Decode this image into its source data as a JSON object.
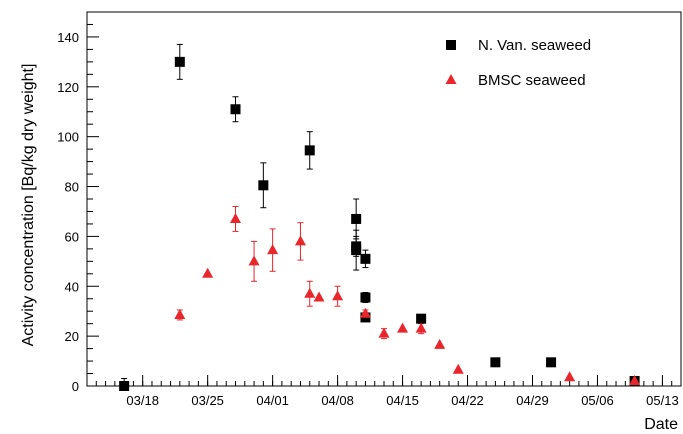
{
  "chart_data": {
    "type": "scatter",
    "xlabel": "Date",
    "ylabel": "Activity concentration [Bq/kg dry weight]",
    "x_axis_type": "date",
    "xlim": [
      "2011-03-12",
      "2011-05-15"
    ],
    "ylim": [
      0,
      150
    ],
    "x_ticks": [
      "03/18",
      "03/25",
      "04/01",
      "04/08",
      "04/15",
      "04/22",
      "04/29",
      "05/06",
      "05/13"
    ],
    "x_tick_dates": [
      "2011-03-18",
      "2011-03-25",
      "2011-04-01",
      "2011-04-08",
      "2011-04-15",
      "2011-04-22",
      "2011-04-29",
      "2011-05-06",
      "2011-05-13"
    ],
    "y_ticks": [
      0,
      20,
      40,
      60,
      80,
      100,
      120,
      140
    ],
    "grid": false,
    "legend_position": "top-right",
    "series": [
      {
        "name": "N. Van. seaweed",
        "marker": "square",
        "color": "#000000",
        "points": [
          {
            "x": "2011-03-16",
            "y": 0,
            "err": 3
          },
          {
            "x": "2011-03-22",
            "y": 130,
            "err": 7
          },
          {
            "x": "2011-03-28",
            "y": 111,
            "err": 5
          },
          {
            "x": "2011-03-31",
            "y": 80.5,
            "err": 9
          },
          {
            "x": "2011-04-05",
            "y": 94.5,
            "err": 7.5
          },
          {
            "x": "2011-04-10",
            "y": 67,
            "err": 8
          },
          {
            "x": "2011-04-10",
            "y": 56,
            "err": 4
          },
          {
            "x": "2011-04-10",
            "y": 54.5,
            "err": 8
          },
          {
            "x": "2011-04-11",
            "y": 51,
            "err": 3.5
          },
          {
            "x": "2011-04-11",
            "y": 35.5,
            "err": 2
          },
          {
            "x": "2011-04-11",
            "y": 27.5,
            "err": 1.5
          },
          {
            "x": "2011-04-17",
            "y": 27,
            "err": 1.5
          },
          {
            "x": "2011-04-25",
            "y": 9.5,
            "err": 1
          },
          {
            "x": "2011-05-01",
            "y": 9.5,
            "err": 1
          },
          {
            "x": "2011-05-10",
            "y": 2,
            "err": 0.5
          }
        ]
      },
      {
        "name": "BMSC seaweed",
        "marker": "triangle",
        "color": "#e8262b",
        "points": [
          {
            "x": "2011-03-22",
            "y": 28.5,
            "err": 2
          },
          {
            "x": "2011-03-25",
            "y": 45,
            "err": 0
          },
          {
            "x": "2011-03-28",
            "y": 67,
            "err": 5
          },
          {
            "x": "2011-03-30",
            "y": 50,
            "err": 8
          },
          {
            "x": "2011-04-01",
            "y": 54.5,
            "err": 8.5
          },
          {
            "x": "2011-04-04",
            "y": 58,
            "err": 7.5
          },
          {
            "x": "2011-04-05",
            "y": 37,
            "err": 5
          },
          {
            "x": "2011-04-06",
            "y": 35.5,
            "err": 0
          },
          {
            "x": "2011-04-08",
            "y": 36,
            "err": 4
          },
          {
            "x": "2011-04-11",
            "y": 29,
            "err": 1.5
          },
          {
            "x": "2011-04-13",
            "y": 21,
            "err": 2
          },
          {
            "x": "2011-04-15",
            "y": 23,
            "err": 0
          },
          {
            "x": "2011-04-17",
            "y": 23,
            "err": 2
          },
          {
            "x": "2011-04-19",
            "y": 16.5,
            "err": 0
          },
          {
            "x": "2011-04-21",
            "y": 6.5,
            "err": 0
          },
          {
            "x": "2011-05-03",
            "y": 3.5,
            "err": 0
          },
          {
            "x": "2011-05-10",
            "y": 2,
            "err": 0
          }
        ]
      }
    ]
  }
}
